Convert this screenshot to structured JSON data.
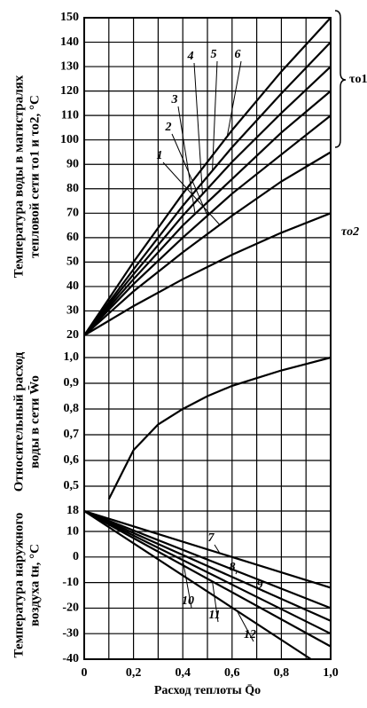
{
  "chart_data": [
    {
      "type": "line",
      "ylabel": [
        "Температура воды в магистралях",
        "тепловой сети τo1 и τo2, °C"
      ],
      "group_label": "τo1",
      "xlim": [
        0,
        1
      ],
      "ylim": [
        20,
        150
      ],
      "yticks": [
        20,
        30,
        40,
        50,
        60,
        70,
        80,
        90,
        100,
        110,
        120,
        130,
        140,
        150
      ],
      "x": [
        0,
        0.2,
        0.4,
        0.6,
        0.8,
        1.0
      ],
      "series": [
        {
          "name": "1",
          "color": "#000000",
          "values": [
            20,
            38,
            54,
            69,
            83,
            95
          ]
        },
        {
          "name": "2",
          "color": "#000000",
          "values": [
            20,
            41,
            60,
            78,
            94,
            110
          ]
        },
        {
          "name": "3",
          "color": "#000000",
          "values": [
            20,
            43,
            65,
            84,
            103,
            120
          ]
        },
        {
          "name": "4",
          "color": "#000000",
          "values": [
            20,
            45,
            69,
            91,
            111,
            130
          ]
        },
        {
          "name": "5",
          "color": "#000000",
          "values": [
            20,
            47,
            73,
            97,
            119,
            140
          ]
        },
        {
          "name": "6",
          "color": "#000000",
          "values": [
            20,
            50,
            78,
            104,
            128,
            150
          ]
        },
        {
          "name": "τo2",
          "color": "#000000",
          "values": [
            20,
            32,
            43,
            53,
            62,
            70
          ]
        }
      ]
    },
    {
      "type": "line",
      "ylabel": [
        "Относительный расход",
        "воды в сети W̄o"
      ],
      "xlim": [
        0,
        1
      ],
      "ylim": [
        0.5,
        1.0
      ],
      "yticks": [
        {
          "value": 0.5,
          "label": "0,5"
        },
        {
          "value": 0.6,
          "label": "0,6"
        },
        {
          "value": 0.7,
          "label": "0,7"
        },
        {
          "value": 0.8,
          "label": "0,8"
        },
        {
          "value": 0.9,
          "label": "0,9"
        },
        {
          "value": 1.0,
          "label": "1,0"
        }
      ],
      "x": [
        0.1,
        0.2,
        0.3,
        0.4,
        0.5,
        0.6,
        0.7,
        0.8,
        0.9,
        1.0
      ],
      "series": [
        {
          "color": "#000000",
          "values": [
            0.45,
            0.64,
            0.74,
            0.8,
            0.85,
            0.89,
            0.92,
            0.95,
            0.975,
            1.0
          ]
        }
      ]
    },
    {
      "type": "line",
      "ylabel": [
        "Температура наружного",
        "воздуха tн, °C"
      ],
      "xlabel": "Расход теплоты Q̄o",
      "xlim": [
        0,
        1
      ],
      "ylim": [
        -40,
        18
      ],
      "yticks": [
        -40,
        -30,
        -20,
        -10,
        0,
        10,
        18
      ],
      "xticks": [
        0,
        {
          "value": 0.2,
          "label": "0,2"
        },
        {
          "value": 0.4,
          "label": "0,4"
        },
        {
          "value": 0.6,
          "label": "0,6"
        },
        {
          "value": 0.8,
          "label": "0,8"
        },
        {
          "value": 1.0,
          "label": "1,0"
        }
      ],
      "xminorticks": [
        0.1,
        0.3,
        0.5,
        0.7,
        0.9
      ],
      "series": [
        {
          "name": "7",
          "color": "#000000",
          "x": [
            0,
            1
          ],
          "values": [
            18,
            -12
          ]
        },
        {
          "name": "8",
          "color": "#000000",
          "x": [
            0,
            1
          ],
          "values": [
            18,
            -20
          ]
        },
        {
          "name": "9",
          "color": "#000000",
          "x": [
            0,
            1
          ],
          "values": [
            18,
            -25
          ]
        },
        {
          "name": "10",
          "color": "#000000",
          "x": [
            0,
            1
          ],
          "values": [
            18,
            -30
          ]
        },
        {
          "name": "11",
          "color": "#000000",
          "x": [
            0,
            1
          ],
          "values": [
            18,
            -35
          ]
        },
        {
          "name": "12",
          "color": "#000000",
          "x": [
            0,
            0.92
          ],
          "values": [
            18,
            -40
          ]
        }
      ]
    }
  ]
}
